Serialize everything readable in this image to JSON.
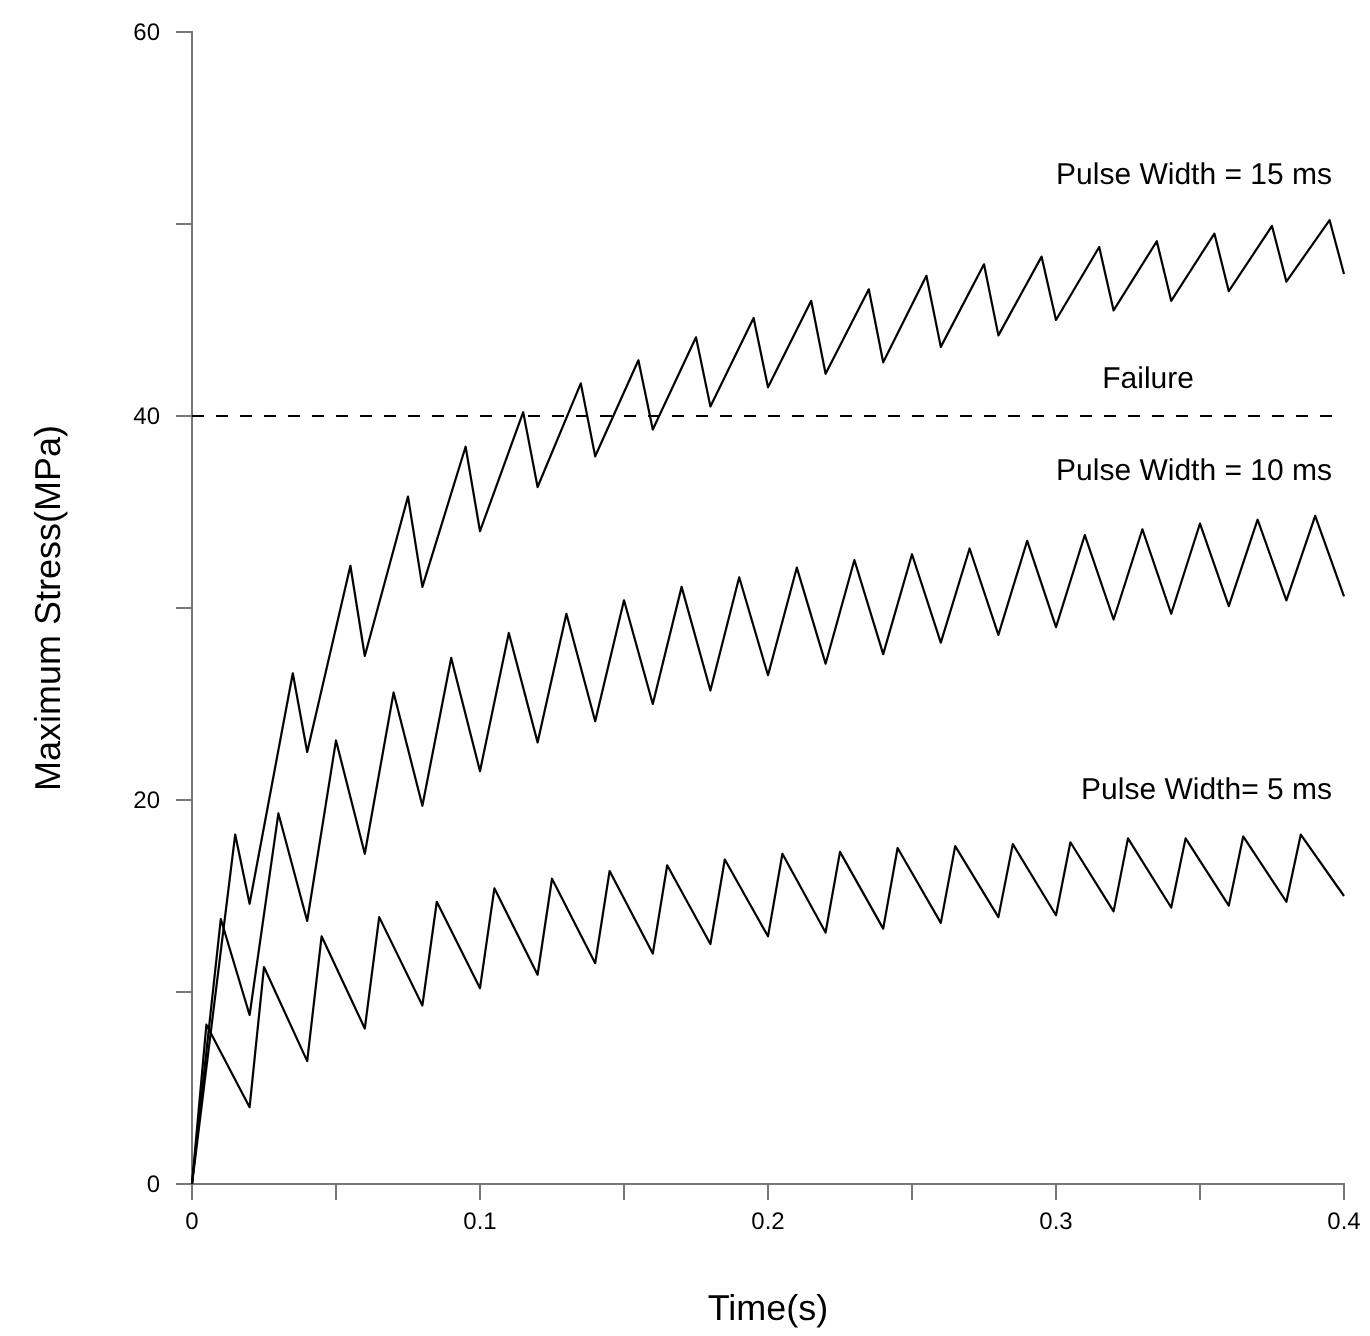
{
  "chart_data": {
    "type": "line",
    "xlabel": "Time(s)",
    "ylabel": "Maximum Stress(MPa)",
    "xlim": [
      0,
      0.4
    ],
    "ylim": [
      0,
      60
    ],
    "xticks": [
      0,
      {
        "value": 0.05,
        "label": null
      },
      0.1,
      {
        "value": 0.15,
        "label": null
      },
      0.2,
      {
        "value": 0.25,
        "label": null
      },
      0.3,
      {
        "value": 0.35,
        "label": null
      },
      0.4
    ],
    "yticks": [
      0,
      {
        "value": 10,
        "label": null
      },
      20,
      {
        "value": 30,
        "label": null
      },
      40,
      {
        "value": 50,
        "label": null
      },
      60
    ],
    "grid": false,
    "marker": "none",
    "line_style": "solid",
    "series": [
      {
        "name": "Pulse Width= 5 ms",
        "color": "#000000",
        "x": [
          0,
          0.005,
          0.02,
          0.025,
          0.04,
          0.045,
          0.06,
          0.065,
          0.08,
          0.085,
          0.1,
          0.105,
          0.12,
          0.125,
          0.14,
          0.145,
          0.16,
          0.165,
          0.18,
          0.185,
          0.2,
          0.205,
          0.22,
          0.225,
          0.24,
          0.245,
          0.26,
          0.265,
          0.28,
          0.285,
          0.3,
          0.305,
          0.32,
          0.325,
          0.34,
          0.345,
          0.36,
          0.365,
          0.38,
          0.385,
          0.4
        ],
        "values": [
          0,
          8.3,
          4.0,
          11.3,
          6.4,
          12.9,
          8.1,
          13.9,
          9.3,
          14.7,
          10.2,
          15.4,
          10.9,
          15.9,
          11.5,
          16.3,
          12.0,
          16.6,
          12.5,
          16.9,
          12.9,
          17.2,
          13.1,
          17.3,
          13.3,
          17.5,
          13.6,
          17.6,
          13.9,
          17.7,
          14.0,
          17.8,
          14.2,
          18.0,
          14.4,
          18.0,
          14.5,
          18.1,
          14.7,
          18.2,
          15.0
        ]
      },
      {
        "name": "Pulse Width = 10 ms",
        "color": "#000000",
        "x": [
          0,
          0.01,
          0.02,
          0.03,
          0.04,
          0.05,
          0.06,
          0.07,
          0.08,
          0.09,
          0.1,
          0.11,
          0.12,
          0.13,
          0.14,
          0.15,
          0.16,
          0.17,
          0.18,
          0.19,
          0.2,
          0.21,
          0.22,
          0.23,
          0.24,
          0.25,
          0.26,
          0.27,
          0.28,
          0.29,
          0.3,
          0.31,
          0.32,
          0.33,
          0.34,
          0.35,
          0.36,
          0.37,
          0.38,
          0.39,
          0.4
        ],
        "values": [
          0,
          13.8,
          8.8,
          19.3,
          13.7,
          23.1,
          17.2,
          25.6,
          19.7,
          27.4,
          21.5,
          28.7,
          23.0,
          29.7,
          24.1,
          30.4,
          25.0,
          31.1,
          25.7,
          31.6,
          26.5,
          32.1,
          27.1,
          32.5,
          27.6,
          32.8,
          28.2,
          33.1,
          28.6,
          33.5,
          29.0,
          33.8,
          29.4,
          34.1,
          29.7,
          34.4,
          30.1,
          34.6,
          30.4,
          34.8,
          30.6
        ]
      },
      {
        "name": "Pulse Width = 15 ms",
        "color": "#000000",
        "x": [
          0,
          0.015,
          0.02,
          0.035,
          0.04,
          0.055,
          0.06,
          0.075,
          0.08,
          0.095,
          0.1,
          0.115,
          0.12,
          0.135,
          0.14,
          0.155,
          0.16,
          0.175,
          0.18,
          0.195,
          0.2,
          0.215,
          0.22,
          0.235,
          0.24,
          0.255,
          0.26,
          0.275,
          0.28,
          0.295,
          0.3,
          0.315,
          0.32,
          0.335,
          0.34,
          0.355,
          0.36,
          0.375,
          0.38,
          0.395,
          0.4
        ],
        "values": [
          0,
          18.2,
          14.6,
          26.6,
          22.5,
          32.2,
          27.5,
          35.8,
          31.1,
          38.4,
          34.0,
          40.2,
          36.3,
          41.7,
          37.9,
          42.9,
          39.3,
          44.1,
          40.5,
          45.1,
          41.5,
          46.0,
          42.2,
          46.6,
          42.8,
          47.3,
          43.6,
          47.9,
          44.2,
          48.3,
          45.0,
          48.8,
          45.5,
          49.1,
          46.0,
          49.5,
          46.5,
          49.9,
          47.0,
          50.2,
          47.4
        ]
      }
    ],
    "ref_lines": [
      {
        "axis": "y",
        "value": 40,
        "color": "#000000",
        "line_style": "dashed",
        "label": "Failure"
      }
    ]
  }
}
